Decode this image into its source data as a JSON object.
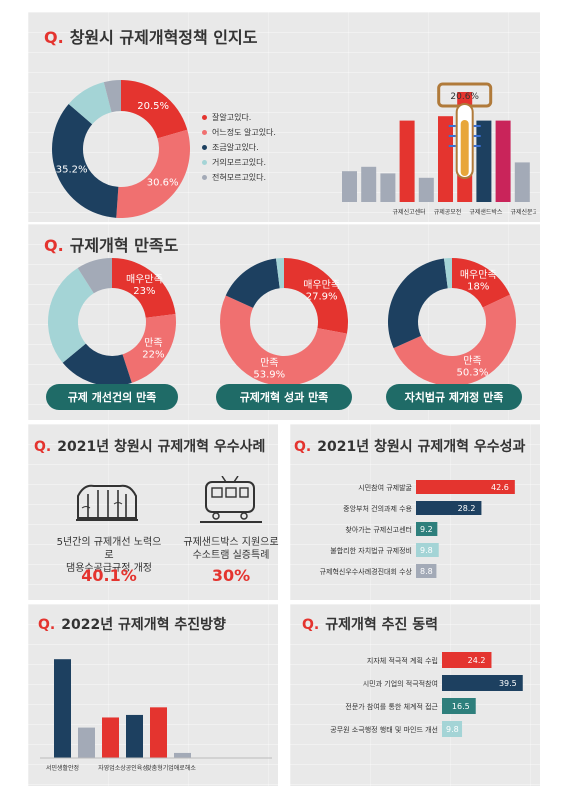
{
  "section1": {
    "title_prefix": "Q.",
    "title": "창원시 규제개혁정책 인지도",
    "legend": [
      {
        "label": "잘알고있다.",
        "color": "#e4342f"
      },
      {
        "label": "어느정도 알고있다.",
        "color": "#f07070"
      },
      {
        "label": "조금알고있다.",
        "color": "#1d4060"
      },
      {
        "label": "거의모르고있다.",
        "color": "#a4d4d6"
      },
      {
        "label": "전혀모르고있다.",
        "color": "#a3aab7"
      }
    ]
  },
  "section2": {
    "title_prefix": "Q.",
    "title": "규제개혁 만족도",
    "pills": [
      "규제 개선건의 만족",
      "규제개혁 성과 만족",
      "자치법규 제개정 만족"
    ]
  },
  "section3": {
    "title_prefix": "Q.",
    "title": "2021년 창원시 규제개혁 우수사례",
    "case1": {
      "line1": "5년간의 규제개선 노력으로",
      "line2": "댐용수공급규정 개정",
      "pct": "40.1%"
    },
    "case2": {
      "line1": "규제샌드박스 지원으로",
      "line2": "수소트램 실증특례",
      "pct": "30%"
    }
  },
  "section4": {
    "title_prefix": "Q.",
    "title": "2021년 창원시 규제개혁 우수성과"
  },
  "section5": {
    "title_prefix": "Q.",
    "title": "2022년 규제개혁 추진방향"
  },
  "section6": {
    "title_prefix": "Q.",
    "title": "규제개혁 추진 동력"
  },
  "chart_data": [
    {
      "id": "awareness",
      "type": "pie",
      "title": "창원시 규제개혁정책 인지도",
      "series": [
        {
          "values": [
            20.5,
            30.6,
            35.2,
            9.7,
            4.0
          ]
        }
      ],
      "categories": [
        "잘알고있다.",
        "어느정도 알고있다.",
        "조금알고있다.",
        "거의모르고있다.",
        "전혀모르고있다."
      ],
      "labels": [
        "20.5%",
        "30.6%",
        "35.2%",
        "",
        ""
      ],
      "colors": [
        "#e4342f",
        "#f07070",
        "#1d4060",
        "#a4d4d6",
        "#a3aab7"
      ]
    },
    {
      "id": "awareness-bars",
      "type": "bar",
      "categories": [
        "",
        "",
        "",
        "규제신고센터",
        "",
        "규제공모전",
        "",
        "규제샌드박스",
        "",
        "규제신문고"
      ],
      "values": [
        14,
        16,
        13,
        37,
        11,
        39,
        50,
        37,
        37,
        18
      ],
      "colors": [
        "#a3aab7",
        "#a3aab7",
        "#a3aab7",
        "#e4342f",
        "#a3aab7",
        "#e4342f",
        "#e4342f",
        "#1d4060",
        "#c9245a",
        "#a3aab7"
      ],
      "highlight_label": "20.6%"
    },
    {
      "id": "satisfaction-1",
      "type": "pie",
      "title": "규제 개선건의 만족",
      "categories": [
        "매우만족",
        "만족",
        "보통",
        "불만족",
        "매우불만족"
      ],
      "values": [
        23,
        22,
        19,
        27,
        9
      ],
      "labels": [
        "매우만족\n23%",
        "만족\n22%",
        "",
        "",
        ""
      ],
      "colors": [
        "#e4342f",
        "#f07070",
        "#1d4060",
        "#a4d4d6",
        "#a3aab7"
      ]
    },
    {
      "id": "satisfaction-2",
      "type": "pie",
      "title": "규제개혁 성과 만족",
      "categories": [
        "매우만족",
        "만족",
        "보통",
        "불만족"
      ],
      "values": [
        27.9,
        53.9,
        16.2,
        2.0
      ],
      "labels": [
        "매우만족\n27.9%",
        "만족\n53.9%",
        "",
        ""
      ],
      "colors": [
        "#e4342f",
        "#f07070",
        "#1d4060",
        "#a4d4d6"
      ]
    },
    {
      "id": "satisfaction-3",
      "type": "pie",
      "title": "자치법규 제개정 만족",
      "categories": [
        "매우만족",
        "만족",
        "보통",
        "불만족"
      ],
      "values": [
        18,
        50.3,
        29.7,
        2.0
      ],
      "labels": [
        "매우만족\n18%",
        "만족\n50.3%",
        "",
        ""
      ],
      "colors": [
        "#e4342f",
        "#f07070",
        "#1d4060",
        "#a4d4d6"
      ]
    },
    {
      "id": "performance",
      "type": "bar",
      "orientation": "horizontal",
      "title": "2021년 창원시 규제개혁 우수성과",
      "categories": [
        "시민참여 규제발굴",
        "중앙부처 건의과제 수용",
        "찾아가는 규제신고센터",
        "불합리한 자치법규 규제정비",
        "규제혁신우수사례경진대회 수상"
      ],
      "values": [
        42.6,
        28.2,
        9.2,
        9.8,
        8.8
      ],
      "colors": [
        "#e4342f",
        "#1d4060",
        "#2e7f7c",
        "#a4d4d6",
        "#a3aab7"
      ],
      "xlim": [
        0,
        50
      ]
    },
    {
      "id": "direction",
      "type": "bar",
      "title": "2022년 규제개혁 추진방향",
      "categories": [
        "서민생활안정",
        "",
        "자영업소상공인육성",
        "",
        "맞춤형기업애로해소",
        ""
      ],
      "values": [
        39,
        12,
        16,
        17,
        20,
        2
      ],
      "colors": [
        "#1d4060",
        "#a3aab7",
        "#e4342f",
        "#1d4060",
        "#e4342f",
        "#a3aab7"
      ],
      "ylim": [
        0,
        45
      ]
    },
    {
      "id": "drive",
      "type": "bar",
      "orientation": "horizontal",
      "title": "규제개혁 추진 동력",
      "categories": [
        "지자체 적극적 계획 수립",
        "시민과 기업의 적극적참여",
        "전문가 참여를 통한 체계적 접근",
        "공무원 소극행정 행태 및 마인드 개선"
      ],
      "values": [
        24.2,
        39.5,
        16.5,
        9.8
      ],
      "colors": [
        "#e4342f",
        "#1d4060",
        "#2e7f7c",
        "#a4d4d6"
      ],
      "xlim": [
        0,
        45
      ]
    }
  ]
}
